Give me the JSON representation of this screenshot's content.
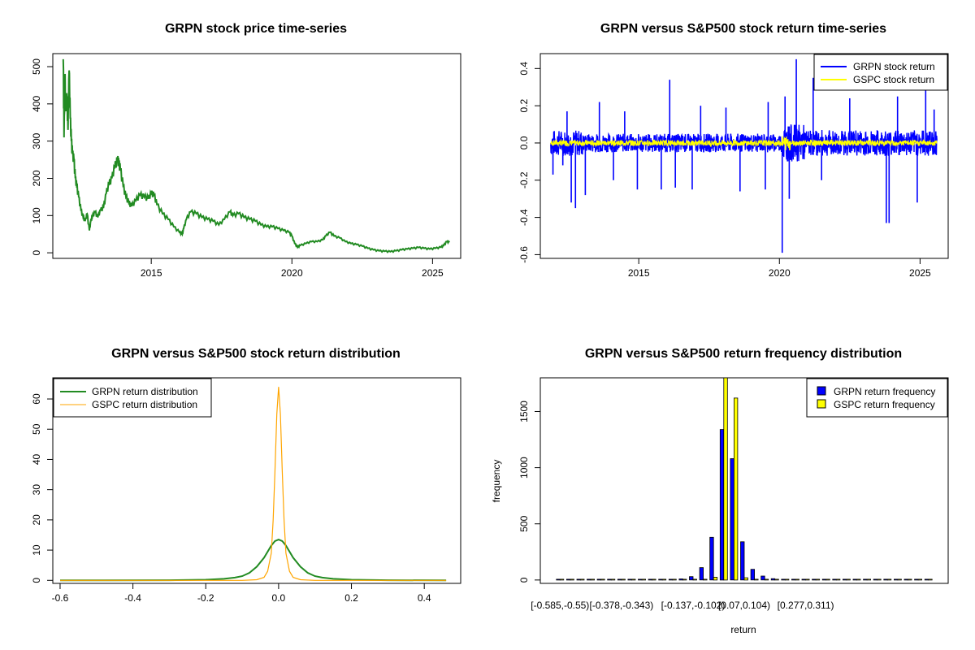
{
  "chart_data": [
    {
      "type": "line",
      "title": "GRPN stock price time-series",
      "xlabel": "",
      "ylabel": "",
      "xlim": [
        2011.5,
        2026.0
      ],
      "ylim": [
        -15,
        535
      ],
      "x_ticks": [
        2015,
        2020,
        2025
      ],
      "x_tick_labels": [
        "2015",
        "2020",
        "2025"
      ],
      "y_ticks": [
        0,
        100,
        200,
        300,
        400,
        500
      ],
      "color": "#228B22",
      "series": [
        {
          "x": [
            2011.87,
            2011.9,
            2011.93,
            2011.96,
            2012.0,
            2012.04,
            2012.08,
            2012.12,
            2012.16,
            2012.2,
            2012.25,
            2012.3,
            2012.35,
            2012.42,
            2012.5,
            2012.58,
            2012.65,
            2012.72,
            2012.8,
            2012.85,
            2012.9,
            2013.0,
            2013.1,
            2013.2,
            2013.3,
            2013.4,
            2013.5,
            2013.6,
            2013.7,
            2013.8,
            2013.85,
            2013.9,
            2014.0,
            2014.1,
            2014.2,
            2014.3,
            2014.45,
            2014.6,
            2014.75,
            2014.9,
            2015.0,
            2015.1,
            2015.2,
            2015.4,
            2015.6,
            2015.8,
            2016.0,
            2016.1,
            2016.15,
            2016.25,
            2016.4,
            2016.6,
            2016.8,
            2017.0,
            2017.2,
            2017.4,
            2017.6,
            2017.8,
            2017.9,
            2018.1,
            2018.3,
            2018.5,
            2018.7,
            2018.9,
            2019.1,
            2019.3,
            2019.5,
            2019.7,
            2019.9,
            2020.0,
            2020.1,
            2020.2,
            2020.3,
            2020.5,
            2020.7,
            2020.9,
            2021.1,
            2021.2,
            2021.35,
            2021.5,
            2021.7,
            2021.9,
            2022.1,
            2022.3,
            2022.5,
            2022.7,
            2022.9,
            2023.1,
            2023.3,
            2023.5,
            2023.7,
            2023.9,
            2024.1,
            2024.3,
            2024.5,
            2024.7,
            2024.9,
            2025.1,
            2025.3,
            2025.4,
            2025.5,
            2025.6
          ],
          "y": [
            520,
            310,
            480,
            380,
            420,
            330,
            490,
            360,
            300,
            265,
            250,
            200,
            180,
            150,
            115,
            95,
            85,
            105,
            60,
            85,
            95,
            110,
            95,
            115,
            120,
            160,
            185,
            200,
            230,
            250,
            240,
            225,
            180,
            150,
            135,
            125,
            140,
            155,
            150,
            145,
            160,
            155,
            130,
            105,
            90,
            70,
            55,
            50,
            65,
            90,
            110,
            105,
            95,
            90,
            85,
            75,
            90,
            110,
            100,
            105,
            95,
            90,
            85,
            75,
            70,
            70,
            65,
            60,
            55,
            45,
            25,
            15,
            20,
            25,
            30,
            30,
            35,
            45,
            55,
            45,
            40,
            30,
            25,
            22,
            18,
            12,
            8,
            5,
            4,
            3,
            5,
            8,
            10,
            12,
            14,
            12,
            10,
            12,
            15,
            20,
            30,
            28
          ]
        }
      ]
    },
    {
      "type": "line",
      "title": "GRPN versus S&P500 stock return time-series",
      "xlabel": "",
      "ylabel": "",
      "xlim": [
        2011.5,
        2026.0
      ],
      "ylim": [
        -0.62,
        0.48
      ],
      "x_ticks": [
        2015,
        2020,
        2025
      ],
      "x_tick_labels": [
        "2015",
        "2020",
        "2025"
      ],
      "y_ticks": [
        -0.6,
        -0.4,
        -0.2,
        0.0,
        0.2,
        0.4
      ],
      "y_tick_labels": [
        "-0.6",
        "-0.4",
        "-0.2",
        "0.0",
        "0.2",
        "0.4"
      ],
      "legend": {
        "position": "top-right",
        "entries": [
          "GRPN stock return",
          "GSPC stock return"
        ]
      },
      "series": [
        {
          "name": "GRPN stock return",
          "color": "#0000FF"
        },
        {
          "name": "GSPC stock return",
          "color": "#FFFF00"
        }
      ],
      "spikes": [
        {
          "x": 2011.95,
          "y": -0.17
        },
        {
          "x": 2012.3,
          "y": -0.12
        },
        {
          "x": 2012.45,
          "y": 0.17
        },
        {
          "x": 2012.6,
          "y": -0.32
        },
        {
          "x": 2012.75,
          "y": -0.35
        },
        {
          "x": 2013.1,
          "y": -0.28
        },
        {
          "x": 2013.6,
          "y": 0.22
        },
        {
          "x": 2014.1,
          "y": -0.2
        },
        {
          "x": 2014.5,
          "y": 0.17
        },
        {
          "x": 2014.95,
          "y": -0.25
        },
        {
          "x": 2015.8,
          "y": -0.25
        },
        {
          "x": 2016.1,
          "y": 0.34
        },
        {
          "x": 2016.3,
          "y": -0.24
        },
        {
          "x": 2016.9,
          "y": -0.25
        },
        {
          "x": 2017.2,
          "y": 0.2
        },
        {
          "x": 2018.1,
          "y": 0.19
        },
        {
          "x": 2018.6,
          "y": -0.26
        },
        {
          "x": 2019.5,
          "y": -0.25
        },
        {
          "x": 2019.6,
          "y": 0.22
        },
        {
          "x": 2020.1,
          "y": -0.59
        },
        {
          "x": 2020.2,
          "y": 0.25
        },
        {
          "x": 2020.35,
          "y": -0.3
        },
        {
          "x": 2020.6,
          "y": 0.45
        },
        {
          "x": 2021.2,
          "y": 0.35
        },
        {
          "x": 2021.5,
          "y": -0.2
        },
        {
          "x": 2022.5,
          "y": 0.24
        },
        {
          "x": 2023.8,
          "y": -0.43
        },
        {
          "x": 2023.9,
          "y": -0.43
        },
        {
          "x": 2024.2,
          "y": 0.25
        },
        {
          "x": 2024.9,
          "y": -0.32
        },
        {
          "x": 2025.2,
          "y": 0.3
        },
        {
          "x": 2025.5,
          "y": 0.18
        }
      ]
    },
    {
      "type": "line",
      "title": "GRPN versus S&P500 stock return distribution",
      "xlabel": "",
      "ylabel": "",
      "xlim": [
        -0.62,
        0.5
      ],
      "ylim": [
        -1,
        67
      ],
      "x_ticks": [
        -0.6,
        -0.4,
        -0.2,
        0.0,
        0.2,
        0.4
      ],
      "x_tick_labels": [
        "-0.6",
        "-0.4",
        "-0.2",
        "0.0",
        "0.2",
        "0.4"
      ],
      "y_ticks": [
        0,
        10,
        20,
        30,
        40,
        50,
        60
      ],
      "legend": {
        "position": "top-left",
        "entries": [
          "GRPN return distribution",
          "GSPC return distribution"
        ]
      },
      "series": [
        {
          "name": "GRPN return distribution",
          "color": "#228B22",
          "x": [
            -0.6,
            -0.3,
            -0.2,
            -0.15,
            -0.12,
            -0.1,
            -0.08,
            -0.06,
            -0.04,
            -0.02,
            -0.01,
            0.0,
            0.01,
            0.02,
            0.04,
            0.06,
            0.08,
            0.1,
            0.12,
            0.15,
            0.2,
            0.3,
            0.46
          ],
          "y": [
            0,
            0.05,
            0.2,
            0.5,
            0.9,
            1.4,
            2.5,
            4.5,
            7.5,
            11.5,
            13.0,
            13.5,
            13.0,
            11.5,
            7.5,
            4.5,
            2.5,
            1.4,
            0.9,
            0.5,
            0.2,
            0.05,
            0
          ]
        },
        {
          "name": "GSPC return distribution",
          "color": "#FFA500",
          "x": [
            -0.6,
            -0.1,
            -0.06,
            -0.04,
            -0.03,
            -0.02,
            -0.015,
            -0.01,
            -0.005,
            0.0,
            0.005,
            0.01,
            0.015,
            0.02,
            0.03,
            0.04,
            0.06,
            0.1,
            0.46
          ],
          "y": [
            0,
            0,
            0.2,
            1.0,
            3.0,
            9.0,
            20.0,
            36.0,
            55.0,
            64.0,
            55.0,
            36.0,
            20.0,
            9.0,
            3.0,
            1.0,
            0.2,
            0,
            0
          ]
        }
      ]
    },
    {
      "type": "bar",
      "title": "GRPN versus S&P500 return frequency distribution",
      "xlabel": "return",
      "ylabel": "frequency",
      "ylim": [
        -30,
        1800
      ],
      "y_ticks": [
        0,
        500,
        1000,
        1500
      ],
      "legend": {
        "position": "top-right",
        "entries": [
          "GRPN return frequency",
          "GSPC return frequency"
        ]
      },
      "x_tick_labels": [
        "[-0.585,-0.55)",
        "[-0.378,-0.343)",
        "[-0.137,-0.102)",
        "[0.07,0.104)",
        "[0.277,0.311)"
      ],
      "x_tick_bins": [
        0,
        6,
        13,
        18,
        24
      ],
      "series": [
        {
          "name": "GRPN return frequency",
          "color": "#0000FF",
          "values": [
            1,
            0,
            0,
            0,
            0,
            1,
            2,
            3,
            2,
            3,
            4,
            5,
            10,
            30,
            110,
            380,
            1340,
            1080,
            340,
            95,
            35,
            12,
            5,
            3,
            2,
            1,
            1,
            1,
            0,
            0,
            0,
            1,
            0,
            0,
            0,
            0,
            1
          ]
        },
        {
          "name": "GSPC return frequency",
          "color": "#FFFF00",
          "values": [
            0,
            0,
            0,
            0,
            0,
            0,
            0,
            0,
            0,
            0,
            0,
            0,
            0,
            0,
            0,
            25,
            1800,
            1620,
            20,
            0,
            0,
            0,
            0,
            0,
            0,
            0,
            0,
            0,
            0,
            0,
            0,
            0,
            0,
            0,
            0,
            0,
            0
          ]
        }
      ]
    }
  ]
}
